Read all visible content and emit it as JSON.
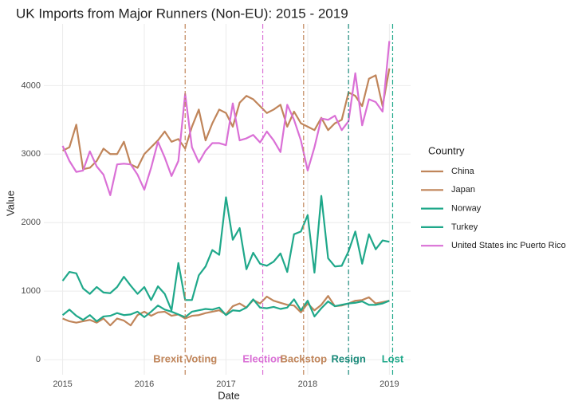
{
  "chart_data": {
    "type": "line",
    "title": "UK Imports from Major Runners (Non-EU): 2015 - 2019",
    "x_label": "Date",
    "y_label": "Value",
    "legend_title": "Country",
    "grid": true,
    "x": [
      2015,
      2015.083,
      2015.167,
      2015.25,
      2015.333,
      2015.417,
      2015.5,
      2015.583,
      2015.667,
      2015.75,
      2015.833,
      2015.917,
      2016,
      2016.083,
      2016.167,
      2016.25,
      2016.333,
      2016.417,
      2016.5,
      2016.583,
      2016.667,
      2016.75,
      2016.833,
      2016.917,
      2017,
      2017.083,
      2017.167,
      2017.25,
      2017.333,
      2017.417,
      2017.5,
      2017.583,
      2017.667,
      2017.75,
      2017.833,
      2017.917,
      2018,
      2018.083,
      2018.167,
      2018.25,
      2018.333,
      2018.417,
      2018.5,
      2018.583,
      2018.667,
      2018.75,
      2018.833,
      2018.917,
      2019
    ],
    "xlim": [
      2014.77,
      2019.26
    ],
    "xticks": [
      2015,
      2016,
      2017,
      2018,
      2019
    ],
    "ylim": [
      -220,
      4900
    ],
    "yticks": [
      0,
      1000,
      2000,
      3000,
      4000
    ],
    "series": [
      {
        "name": "China",
        "color": "#c0855a",
        "values": [
          600,
          560,
          540,
          560,
          580,
          540,
          600,
          500,
          600,
          570,
          500,
          650,
          700,
          640,
          690,
          700,
          640,
          660,
          600,
          640,
          650,
          680,
          700,
          720,
          660,
          780,
          820,
          760,
          870,
          820,
          920,
          860,
          830,
          800,
          790,
          690,
          820,
          720,
          800,
          930,
          780,
          790,
          820,
          860,
          870,
          910,
          820,
          840,
          860
        ]
      },
      {
        "name": "Japan",
        "color": "#c0855a",
        "values": [
          3050,
          3100,
          3430,
          2780,
          2800,
          2900,
          3080,
          3000,
          3000,
          3180,
          2850,
          2800,
          3000,
          3100,
          3200,
          3330,
          3180,
          3220,
          3080,
          3400,
          3650,
          3200,
          3450,
          3650,
          3600,
          3400,
          3750,
          3850,
          3800,
          3700,
          3600,
          3650,
          3720,
          3400,
          3620,
          3450,
          3400,
          3350,
          3530,
          3350,
          3450,
          3500,
          3900,
          3850,
          3700,
          4100,
          4150,
          3700,
          4250
        ]
      },
      {
        "name": "Norway",
        "color": "#1fa88a",
        "values": [
          1150,
          1280,
          1260,
          1040,
          960,
          1060,
          980,
          970,
          1060,
          1210,
          1080,
          960,
          1060,
          870,
          1070,
          960,
          720,
          1410,
          870,
          870,
          1230,
          1360,
          1600,
          1530,
          2370,
          1750,
          1920,
          1320,
          1560,
          1400,
          1370,
          1430,
          1550,
          1280,
          1830,
          1870,
          2110,
          1270,
          2390,
          1480,
          1360,
          1370,
          1580,
          1870,
          1400,
          1830,
          1610,
          1740,
          1720
        ]
      },
      {
        "name": "Turkey",
        "color": "#1fa88a",
        "values": [
          650,
          730,
          640,
          580,
          650,
          560,
          630,
          640,
          680,
          650,
          660,
          700,
          620,
          700,
          790,
          730,
          700,
          660,
          620,
          700,
          720,
          740,
          730,
          760,
          650,
          720,
          710,
          760,
          880,
          760,
          750,
          770,
          740,
          760,
          880,
          720,
          860,
          630,
          750,
          850,
          780,
          800,
          820,
          830,
          850,
          800,
          800,
          820,
          860
        ]
      },
      {
        "name": "United States inc Puerto Rico",
        "color": "#da70d6",
        "values": [
          3120,
          2900,
          2740,
          2760,
          3040,
          2820,
          2700,
          2400,
          2850,
          2860,
          2850,
          2700,
          2480,
          2800,
          3180,
          2950,
          2680,
          2900,
          3880,
          3100,
          2880,
          3050,
          3160,
          3160,
          3130,
          3740,
          3200,
          3230,
          3280,
          3170,
          3330,
          3200,
          3030,
          3720,
          3500,
          3200,
          2760,
          3100,
          3520,
          3500,
          3560,
          3350,
          3480,
          4180,
          3420,
          3800,
          3760,
          3620,
          4650
        ]
      }
    ],
    "annotations": [
      {
        "x": 2016.5,
        "label": "Brexit Voting",
        "color": "#c0855a"
      },
      {
        "x": 2017.45,
        "label": "Election",
        "color": "#da70d6"
      },
      {
        "x": 2017.95,
        "label": "Backstop",
        "color": "#c0855a"
      },
      {
        "x": 2018.5,
        "label": "Resign",
        "color": "#1a8a7a"
      },
      {
        "x": 2019.04,
        "label": "Lost",
        "color": "#1fa88a"
      }
    ]
  }
}
